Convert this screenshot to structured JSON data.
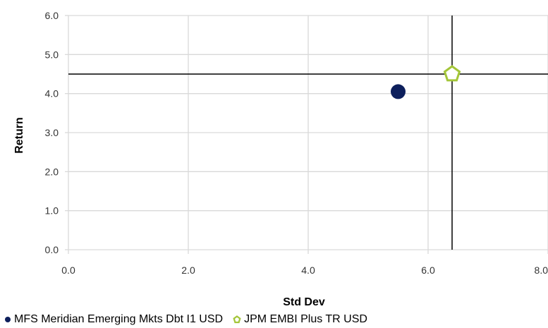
{
  "chart_data": {
    "type": "scatter",
    "xlabel": "Std Dev",
    "ylabel": "Return",
    "xlim": [
      0,
      8
    ],
    "ylim": [
      0,
      6
    ],
    "x_ticks": [
      "0.0",
      "2.0",
      "4.0",
      "6.0",
      "8.0"
    ],
    "y_ticks": [
      "0.0",
      "1.0",
      "2.0",
      "3.0",
      "4.0",
      "5.0",
      "6.0"
    ],
    "grid": true,
    "legend_position": "bottom",
    "series": [
      {
        "name": "MFS Meridian Emerging Mkts Dbt I1 USD",
        "x": 5.5,
        "y": 4.05,
        "marker": "circle",
        "color": "#0d1f5c"
      },
      {
        "name": "JPM EMBI Plus TR USD",
        "x": 6.4,
        "y": 4.5,
        "marker": "pentagon",
        "color": "#a4c639"
      }
    ],
    "reference_lines": {
      "x": 6.4,
      "y": 4.5,
      "color": "#000000"
    }
  }
}
